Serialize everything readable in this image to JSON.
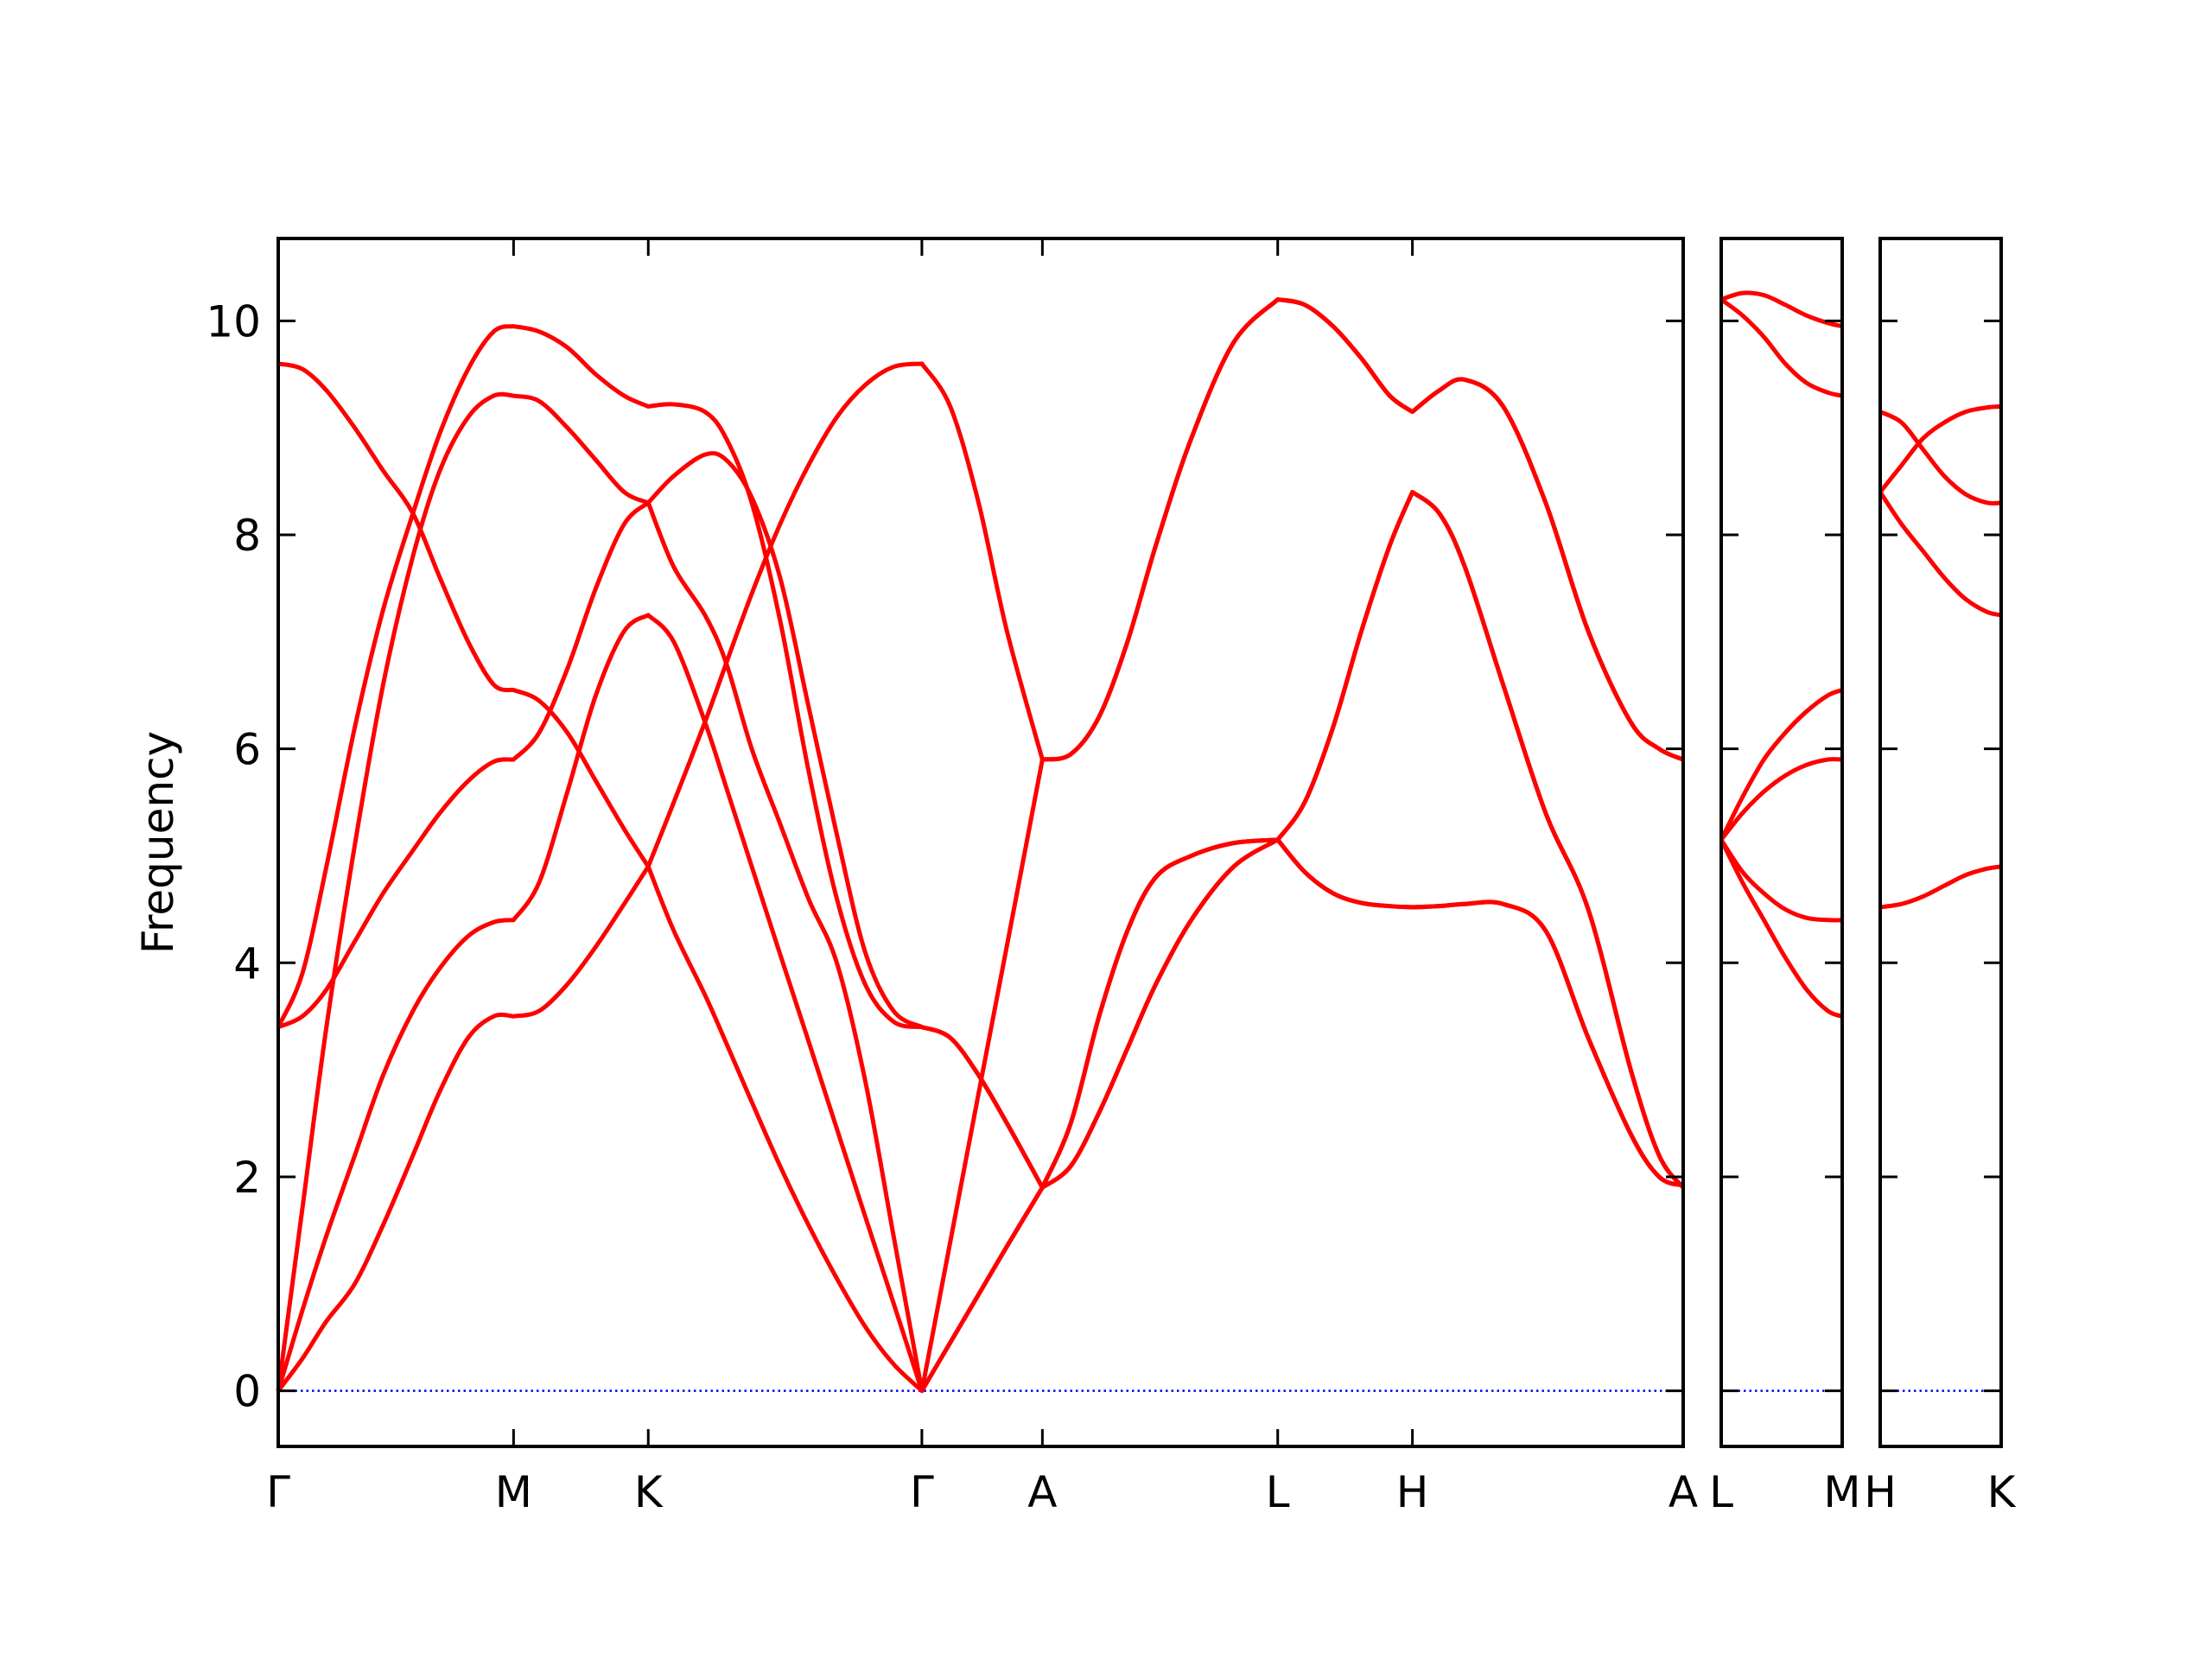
{
  "chart_data": [
    {
      "type": "line",
      "ylabel": "Frequency",
      "xlim": [
        0,
        9.91
      ],
      "ylim": [
        -0.52,
        10.77
      ],
      "yticks": [
        0,
        2,
        4,
        6,
        8,
        10
      ],
      "xticks": [
        {
          "value": 0,
          "label": "Γ"
        },
        {
          "value": 1.66,
          "label": "M"
        },
        {
          "value": 2.61,
          "label": "K"
        },
        {
          "value": 4.54,
          "label": "Γ"
        },
        {
          "value": 5.39,
          "label": "A"
        },
        {
          "value": 7.05,
          "label": "L"
        },
        {
          "value": 8.0,
          "label": "H"
        },
        {
          "value": 9.91,
          "label": "A"
        }
      ],
      "hline": {
        "y": 0,
        "color": "#0000ff",
        "style": "dotted"
      },
      "x": [
        0,
        0.17,
        0.34,
        0.54,
        0.74,
        0.95,
        1.14,
        1.34,
        1.52,
        1.66,
        1.84,
        2.04,
        2.24,
        2.44,
        2.61,
        2.79,
        3.01,
        3.16,
        3.34,
        3.54,
        3.74,
        3.94,
        4.14,
        4.34,
        4.54,
        4.74,
        4.94,
        5.14,
        5.39,
        5.59,
        5.79,
        5.99,
        6.19,
        6.44,
        6.74,
        7.05,
        7.24,
        7.44,
        7.64,
        7.84,
        8.0,
        8.19,
        8.37,
        8.64,
        8.94,
        9.24,
        9.54,
        9.74,
        9.91
      ],
      "series": [
        {
          "color": "#ff0000",
          "values": [
            9.6,
            9.55,
            9.35,
            9.0,
            8.6,
            8.2,
            7.6,
            7.0,
            6.6,
            6.55,
            6.45,
            6.15,
            5.7,
            5.25,
            4.9,
            4.3,
            3.7,
            3.25,
            2.7,
            2.1,
            1.55,
            1.05,
            0.6,
            0.25,
            0,
            0.45,
            0.9,
            1.35,
            1.9,
            2.1,
            2.6,
            3.2,
            3.8,
            4.4,
            4.9,
            5.15,
            4.85,
            4.65,
            4.56,
            4.53,
            4.52,
            4.53,
            4.55,
            4.55,
            4.3,
            3.3,
            2.4,
            2.0,
            1.92
          ]
        },
        {
          "color": "#ff0000",
          "values": [
            3.4,
            3.9,
            4.9,
            6.2,
            7.3,
            8.2,
            8.95,
            9.55,
            9.9,
            9.95,
            9.9,
            9.75,
            9.5,
            9.3,
            9.2,
            9.22,
            9.15,
            8.9,
            8.3,
            7.2,
            5.8,
            4.6,
            3.8,
            3.45,
            3.4,
            3.3,
            2.95,
            2.5,
            1.9,
            2.5,
            3.5,
            4.3,
            4.8,
            5.0,
            5.12,
            5.15,
            4.85,
            4.65,
            4.56,
            4.53,
            4.52,
            4.53,
            4.55,
            4.55,
            4.3,
            3.3,
            2.4,
            2.0,
            1.92
          ]
        },
        {
          "color": "#ff0000",
          "values": [
            0,
            1.7,
            3.4,
            5.1,
            6.6,
            7.8,
            8.6,
            9.1,
            9.3,
            9.3,
            9.25,
            9.0,
            8.7,
            8.4,
            8.3,
            8.55,
            8.75,
            8.7,
            8.35,
            7.6,
            6.4,
            5.2,
            4.1,
            3.55,
            3.4,
            3.3,
            2.95,
            2.5,
            1.9,
            2.5,
            3.5,
            4.3,
            4.8,
            5.0,
            5.12,
            5.15,
            5.5,
            6.2,
            7.1,
            7.9,
            8.4,
            8.2,
            7.7,
            6.6,
            5.4,
            4.5,
            3.0,
            2.2,
            1.9
          ]
        },
        {
          "color": "#ff0000",
          "values": [
            3.4,
            3.5,
            3.75,
            4.2,
            4.65,
            5.05,
            5.4,
            5.7,
            5.88,
            5.9,
            6.15,
            6.75,
            7.5,
            8.1,
            8.3,
            7.7,
            7.25,
            6.8,
            6.0,
            5.3,
            4.6,
            4.0,
            2.9,
            1.45,
            0,
            1.39,
            2.78,
            4.16,
            5.9,
            5.95,
            6.3,
            7.0,
            7.9,
            8.9,
            9.8,
            10.2,
            10.15,
            9.95,
            9.65,
            9.3,
            9.15,
            9.35,
            9.45,
            9.2,
            8.3,
            7.1,
            6.25,
            6.0,
            5.9
          ]
        },
        {
          "color": "#ff0000",
          "values": [
            0,
            0.75,
            1.45,
            2.2,
            2.95,
            3.55,
            3.95,
            4.25,
            4.38,
            4.4,
            4.75,
            5.6,
            6.5,
            7.1,
            7.25,
            7.0,
            6.25,
            5.64,
            4.9,
            4.08,
            3.27,
            2.45,
            1.63,
            0.82,
            0,
            0.45,
            0.9,
            1.35,
            1.9,
            2.1,
            2.6,
            3.2,
            3.8,
            4.4,
            4.9,
            5.15,
            5.5,
            6.2,
            7.1,
            7.9,
            8.4,
            8.2,
            7.7,
            6.6,
            5.4,
            4.5,
            3.0,
            2.2,
            1.9
          ]
        },
        {
          "color": "#ff0000",
          "values": [
            0,
            0.3,
            0.65,
            1.0,
            1.55,
            2.2,
            2.8,
            3.3,
            3.5,
            3.5,
            3.55,
            3.8,
            4.15,
            4.55,
            4.9,
            5.5,
            6.25,
            6.8,
            7.45,
            8.1,
            8.65,
            9.1,
            9.4,
            9.57,
            9.6,
            9.2,
            8.3,
            7.1,
            5.9,
            5.95,
            6.3,
            7.0,
            7.9,
            8.9,
            9.8,
            10.2,
            10.15,
            9.95,
            9.65,
            9.3,
            9.15,
            9.35,
            9.45,
            9.2,
            8.3,
            7.1,
            6.25,
            6.0,
            5.9
          ]
        }
      ]
    },
    {
      "type": "line",
      "xlim": [
        0,
        0.85
      ],
      "ylim": [
        -0.52,
        10.77
      ],
      "xticks": [
        {
          "value": 0,
          "label": "L"
        },
        {
          "value": 0.85,
          "label": "M"
        }
      ],
      "hline": {
        "y": 0,
        "color": "#0000ff",
        "style": "dotted"
      },
      "x": [
        0,
        0.15,
        0.3,
        0.45,
        0.6,
        0.75,
        0.85
      ],
      "series": [
        {
          "color": "#ff0000",
          "values": [
            10.2,
            10.26,
            10.24,
            10.15,
            10.05,
            9.98,
            9.95
          ]
        },
        {
          "color": "#ff0000",
          "values": [
            10.2,
            10.05,
            9.85,
            9.6,
            9.42,
            9.33,
            9.3
          ]
        },
        {
          "color": "#ff0000",
          "values": [
            5.15,
            5.55,
            5.9,
            6.15,
            6.35,
            6.5,
            6.55
          ]
        },
        {
          "color": "#ff0000",
          "values": [
            5.15,
            5.4,
            5.6,
            5.75,
            5.85,
            5.9,
            5.9
          ]
        },
        {
          "color": "#ff0000",
          "values": [
            5.15,
            4.85,
            4.65,
            4.5,
            4.42,
            4.4,
            4.4
          ]
        },
        {
          "color": "#ff0000",
          "values": [
            5.15,
            4.75,
            4.4,
            4.05,
            3.75,
            3.55,
            3.5
          ]
        }
      ]
    },
    {
      "type": "line",
      "xlim": [
        0,
        0.85
      ],
      "ylim": [
        -0.52,
        10.77
      ],
      "xticks": [
        {
          "value": 0,
          "label": "H"
        },
        {
          "value": 0.85,
          "label": "K"
        }
      ],
      "hline": {
        "y": 0,
        "color": "#0000ff",
        "style": "dotted"
      },
      "x": [
        0,
        0.15,
        0.3,
        0.45,
        0.6,
        0.75,
        0.85
      ],
      "series": [
        {
          "color": "#ff0000",
          "values": [
            9.15,
            9.05,
            8.8,
            8.55,
            8.38,
            8.3,
            8.3
          ]
        },
        {
          "color": "#ff0000",
          "values": [
            8.4,
            8.65,
            8.9,
            9.05,
            9.15,
            9.19,
            9.2
          ]
        },
        {
          "color": "#ff0000",
          "values": [
            8.4,
            8.1,
            7.85,
            7.6,
            7.4,
            7.28,
            7.25
          ]
        },
        {
          "color": "#ff0000",
          "values": [
            4.52,
            4.55,
            4.62,
            4.72,
            4.82,
            4.88,
            4.9
          ]
        }
      ]
    }
  ]
}
